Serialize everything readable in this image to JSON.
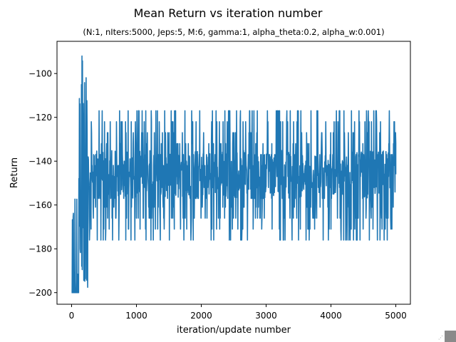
{
  "chart_data": {
    "type": "line",
    "title": "Mean Return vs iteration number",
    "subtitle": "(N:1, nIters:5000, Jeps:5, M:6, gamma:1, alpha_theta:0.2, alpha_w:0.001)",
    "xlabel": "iteration/update number",
    "ylabel": "Return",
    "xlim": [
      -225,
      5225
    ],
    "ylim": [
      -205.3,
      -85.3
    ],
    "xticks": [
      0,
      1000,
      2000,
      3000,
      4000,
      5000
    ],
    "xtick_labels": [
      "0",
      "1000",
      "2000",
      "3000",
      "4000",
      "5000"
    ],
    "yticks": [
      -200,
      -180,
      -160,
      -140,
      -120,
      -100
    ],
    "ytick_labels": [
      "−200",
      "−180",
      "−160",
      "−140",
      "−120",
      "−100"
    ],
    "grid": false,
    "series": [
      {
        "color": "#1f77b4",
        "description_of_data": "single noisy series of 5000 points",
        "phases": [
          {
            "x_range": [
              0,
              110
            ],
            "typical_min": -200,
            "typical_max": -151
          },
          {
            "x_range": [
              110,
              250
            ],
            "typical_min": -200,
            "typical_max": -90
          },
          {
            "x_range": [
              250,
              5000
            ],
            "typical_min": -176,
            "typical_max": -117,
            "mean": -146
          }
        ]
      }
    ]
  }
}
